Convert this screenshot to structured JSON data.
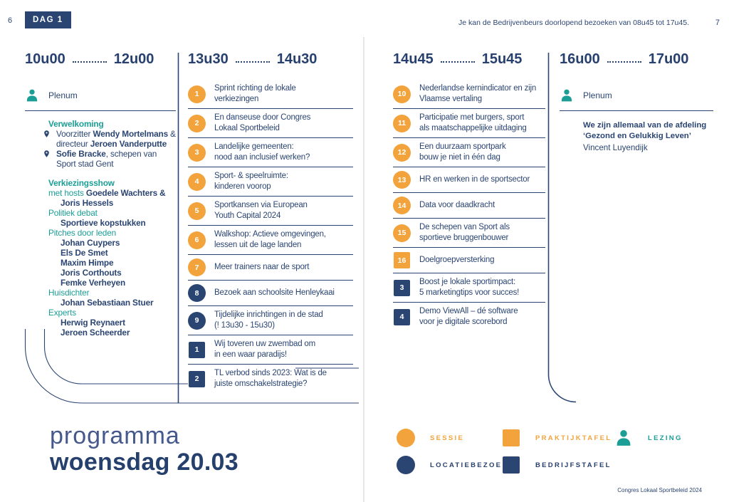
{
  "header": {
    "left_page_number": "6",
    "day_badge": "DAG 1",
    "note": "Je kan de Bedrijvenbeurs doorlopend bezoeken van 08u45 tot 17u45.",
    "right_page_number": "7"
  },
  "title": {
    "light": "programma",
    "bold": "woensdag 20.03"
  },
  "footer": "Congres Lokaal Sportbeleid 2024",
  "colors": {
    "navy": "#2b4573",
    "orange": "#f2a33c",
    "teal": "#1b9e96",
    "fold_gray": "#cfcfcf"
  },
  "columns": [
    {
      "time_start": "10u00",
      "time_end": "12u00",
      "plenum_label": "Plenum",
      "entries": [
        {
          "kind": "h-bold",
          "text": "Verwelkoming"
        },
        {
          "kind": "pin",
          "runs": [
            {
              "t": "Voorzitter "
            },
            {
              "t": "Wendy Mortelmans",
              "b": true
            },
            {
              "t": " & directeur "
            },
            {
              "t": "Jeroen Vanderputte",
              "b": true
            }
          ]
        },
        {
          "kind": "pin",
          "runs": [
            {
              "t": "Sofie Bracke",
              "b": true
            },
            {
              "t": ", schepen van Sport stad Gent"
            }
          ]
        },
        {
          "kind": "gap"
        },
        {
          "kind": "h-bold",
          "text": "Verkiezingsshow"
        },
        {
          "kind": "runs",
          "runs": [
            {
              "t": "met hosts ",
              "teal": true
            },
            {
              "t": "Goedele Wachters & Joris Hessels",
              "b": true
            }
          ]
        },
        {
          "kind": "h",
          "text": "Politiek debat"
        },
        {
          "kind": "name",
          "text": "Sportieve kopstukken"
        },
        {
          "kind": "h",
          "text": "Pitches door leden"
        },
        {
          "kind": "name",
          "text": "Johan Cuypers"
        },
        {
          "kind": "name",
          "text": "Els De Smet"
        },
        {
          "kind": "name",
          "text": "Maxim Himpe"
        },
        {
          "kind": "name",
          "text": "Joris Corthouts"
        },
        {
          "kind": "name",
          "text": "Femke Verheyen"
        },
        {
          "kind": "h",
          "text": "Huisdichter"
        },
        {
          "kind": "name",
          "text": "Johan Sebastiaan Stuer"
        },
        {
          "kind": "h",
          "text": "Experts"
        },
        {
          "kind": "name",
          "text": "Herwig Reynaert"
        },
        {
          "kind": "name",
          "text": "Jeroen Scheerder"
        }
      ]
    },
    {
      "time_start": "13u30",
      "time_end": "14u30",
      "items": [
        {
          "num": "1",
          "shape": "circle",
          "color": "orange",
          "text": "Sprint richting de lokale\nverkiezingen"
        },
        {
          "num": "2",
          "shape": "circle",
          "color": "orange",
          "text": "En danseuse door Congres\nLokaal Sportbeleid"
        },
        {
          "num": "3",
          "shape": "circle",
          "color": "orange",
          "text": "Landelijke gemeenten:\nnood aan inclusief werken?"
        },
        {
          "num": "4",
          "shape": "circle",
          "color": "orange",
          "text": "Sport- & speelruimte:\nkinderen voorop"
        },
        {
          "num": "5",
          "shape": "circle",
          "color": "orange",
          "text": "Sportkansen via European\nYouth Capital 2024"
        },
        {
          "num": "6",
          "shape": "circle",
          "color": "orange",
          "text": "Walkshop: Actieve omgevingen,\nlessen uit de lage landen"
        },
        {
          "num": "7",
          "shape": "circle",
          "color": "orange",
          "text": "Meer trainers naar de sport"
        },
        {
          "num": "8",
          "shape": "circle",
          "color": "navy",
          "text": "Bezoek aan schoolsite Henleykaai"
        },
        {
          "num": "9",
          "shape": "circle",
          "color": "navy",
          "text": "Tijdelijke inrichtingen in de stad\n(! 13u30 - 15u30)"
        },
        {
          "num": "1",
          "shape": "square",
          "color": "navy",
          "text": "Wij toveren uw zwembad om\nin een waar paradijs!"
        },
        {
          "num": "2",
          "shape": "square",
          "color": "navy",
          "text": "TL verbod sinds 2023: Wat is de\njuiste omschakelstrategie?"
        }
      ]
    },
    {
      "time_start": "14u45",
      "time_end": "15u45",
      "items": [
        {
          "num": "10",
          "shape": "circle",
          "color": "orange",
          "text": "Nederlandse kernindicator en zijn\nVlaamse vertaling"
        },
        {
          "num": "11",
          "shape": "circle",
          "color": "orange",
          "text": "Participatie met burgers, sport\nals maatschappelijke uitdaging"
        },
        {
          "num": "12",
          "shape": "circle",
          "color": "orange",
          "text": "Een duurzaam sportpark\nbouw je niet in één dag"
        },
        {
          "num": "13",
          "shape": "circle",
          "color": "orange",
          "text": "HR en werken in de sportsector"
        },
        {
          "num": "14",
          "shape": "circle",
          "color": "orange",
          "text": "Data voor daadkracht"
        },
        {
          "num": "15",
          "shape": "circle",
          "color": "orange",
          "text": "De schepen van Sport als\nsportieve bruggenbouwer"
        },
        {
          "num": "16",
          "shape": "square",
          "color": "orange",
          "text": "Doelgroepversterking"
        },
        {
          "num": "3",
          "shape": "square",
          "color": "navy",
          "text": "Boost je lokale sportimpact:\n5 marketingtips voor succes!"
        },
        {
          "num": "4",
          "shape": "square",
          "color": "navy",
          "text": "Demo ViewAll – dé software\nvoor je digitale scorebord"
        }
      ]
    },
    {
      "time_start": "16u00",
      "time_end": "17u00",
      "plenum_label": "Plenum",
      "talk_title": "We zijn allemaal van de afdeling\n‘Gezond en Gelukkig Leven’",
      "talk_speaker": "Vincent Luyendijk"
    }
  ],
  "legend": {
    "rows": [
      [
        {
          "shape": "circle",
          "color": "orange",
          "label": "SESSIE"
        },
        {
          "shape": "square",
          "color": "orange",
          "label": "PRAKTIJKTAFEL"
        },
        {
          "shape": "person",
          "color": "teal",
          "label": "LEZING"
        }
      ],
      [
        {
          "shape": "circle",
          "color": "navy",
          "label": "LOCATIEBEZOEK"
        },
        {
          "shape": "square",
          "color": "navy",
          "label": "BEDRIJFSTAFEL"
        }
      ]
    ]
  }
}
